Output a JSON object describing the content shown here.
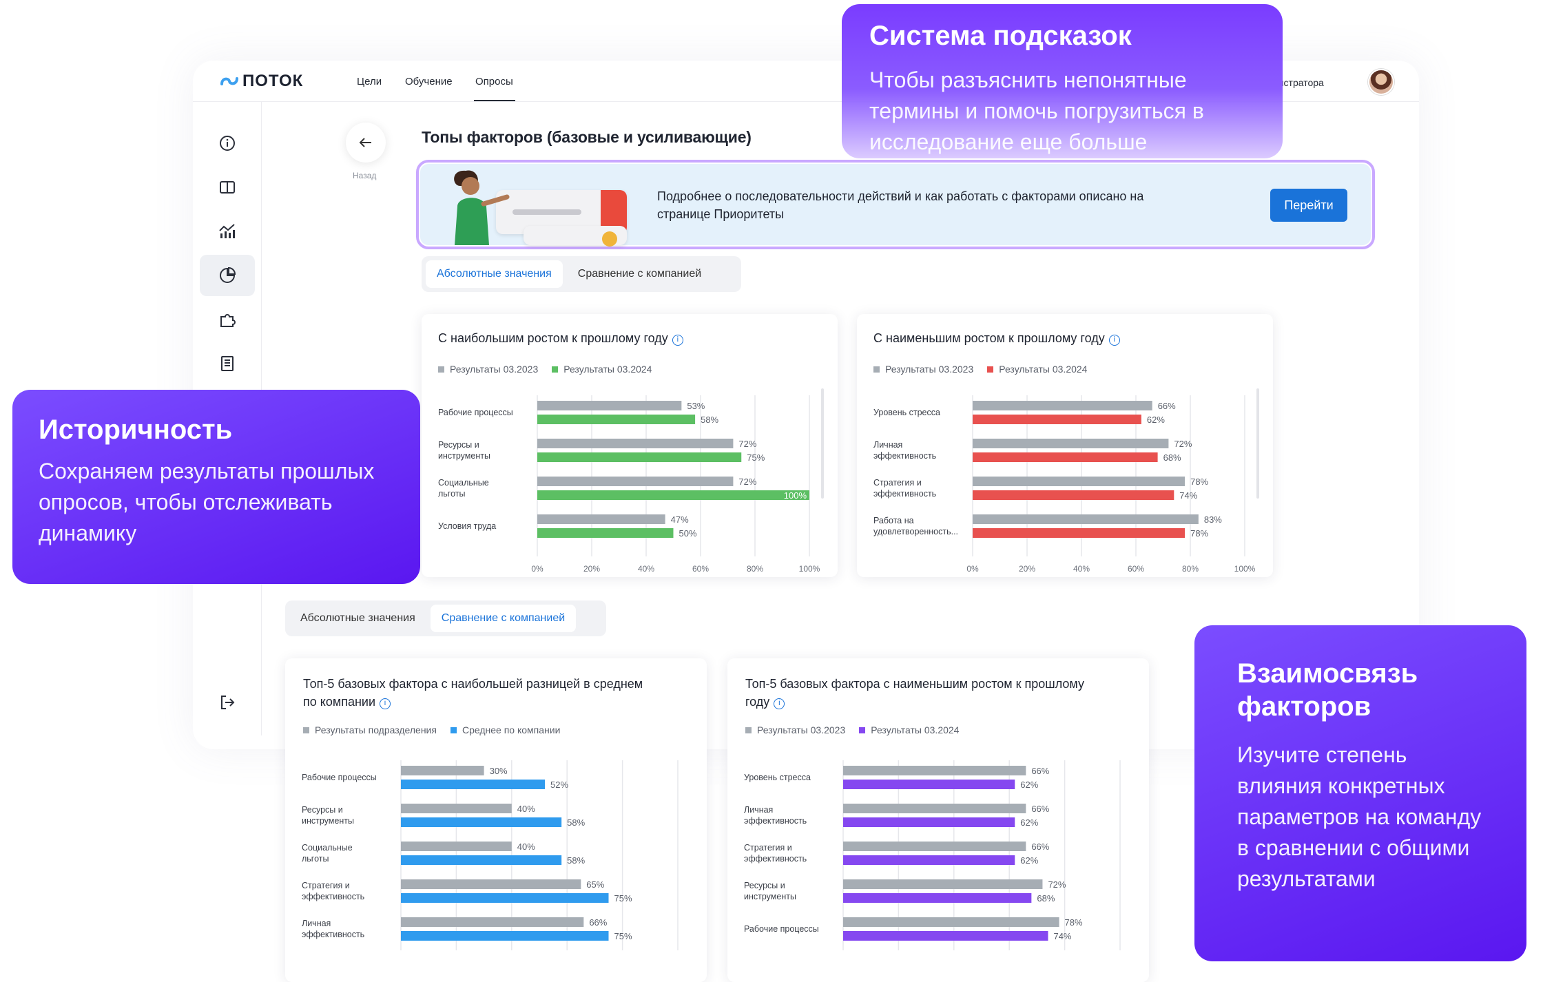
{
  "app": {
    "logo": "ПОТОК",
    "nav": [
      "Цели",
      "Обучение",
      "Опросы"
    ],
    "admin_label": "нистратора"
  },
  "page": {
    "back_label": "Назад",
    "title": "Топы факторов (базовые и усиливающие)"
  },
  "banner": {
    "text": "Подробнее о последовательности действий и как работать с факторами описано на странице Приоритеты",
    "button": "Перейти"
  },
  "tabs_top": [
    "Абсолютные значения",
    "Сравнение с компанией"
  ],
  "tabs_bottom": [
    "Абсолютные значения",
    "Сравнение с компанией"
  ],
  "callouts": {
    "hint": {
      "title": "Система подсказок",
      "text": "Чтобы разъяснить непонятные термины и помочь погрузиться в исследование еще больше"
    },
    "history": {
      "title": "Историчность",
      "text": "Сохраняем результаты прошлых опросов, чтобы отслеживать динамику"
    },
    "link": {
      "title": "Взаимосвязь факторов",
      "text": "Изучите степень влияния конкретных параметров на команду в сравнении с общими результатами"
    }
  },
  "colors": {
    "gray": "#a6adb4",
    "green": "#5cbf63",
    "red": "#e8514f",
    "blue": "#2f9bee",
    "purple": "#8548f0",
    "accent": "#1a73d9"
  },
  "chart_data": [
    {
      "type": "bar",
      "title": "С наибольшим ростом к прошлому году",
      "categories": [
        [
          "Рабочие процессы"
        ],
        [
          "Ресурсы и",
          "инструменты"
        ],
        [
          "Социальные",
          "льготы"
        ],
        [
          "Условия труда"
        ]
      ],
      "series": [
        {
          "name": "Результаты 03.2023",
          "values": [
            53,
            72,
            72,
            47
          ],
          "labels": [
            "53%",
            "72%",
            "72%",
            "47%"
          ],
          "color": "gray"
        },
        {
          "name": "Результаты 03.2024",
          "values": [
            58,
            75,
            100,
            50
          ],
          "labels": [
            "58%",
            "75%",
            "100%",
            "50%"
          ],
          "color": "green"
        }
      ],
      "xticks": [
        "0%",
        "20%",
        "40%",
        "60%",
        "80%",
        "100%"
      ],
      "xlim": [
        0,
        100
      ]
    },
    {
      "type": "bar",
      "title": "С наименьшим ростом к прошлому году",
      "categories": [
        [
          "Уровень стресса"
        ],
        [
          "Личная",
          "эффективность"
        ],
        [
          "Стратегия и",
          "эффективность"
        ],
        [
          "Работа на",
          "удовлетворенность..."
        ]
      ],
      "series": [
        {
          "name": "Результаты 03.2023",
          "values": [
            66,
            72,
            78,
            83
          ],
          "labels": [
            "66%",
            "72%",
            "78%",
            "83%"
          ],
          "color": "gray"
        },
        {
          "name": "Результаты 03.2024",
          "values": [
            62,
            68,
            74,
            78
          ],
          "labels": [
            "62%",
            "68%",
            "74%",
            "78%"
          ],
          "color": "red"
        }
      ],
      "xticks": [
        "0%",
        "20%",
        "40%",
        "60%",
        "80%",
        "100%"
      ],
      "xlim": [
        0,
        100
      ]
    },
    {
      "type": "bar",
      "title": "Топ-5 базовых фактора с наибольшей разницей в среднем по компании",
      "categories": [
        [
          "Рабочие процессы"
        ],
        [
          "Ресурсы и",
          "инструменты"
        ],
        [
          "Социальные",
          "льготы"
        ],
        [
          "Стратегия и",
          "эффективность"
        ],
        [
          "Личная",
          "эффективность"
        ]
      ],
      "series": [
        {
          "name": "Результаты подразделения",
          "values": [
            30,
            40,
            40,
            65,
            66
          ],
          "labels": [
            "30%",
            "40%",
            "40%",
            "65%",
            "66%"
          ],
          "color": "gray"
        },
        {
          "name": "Среднее по компании",
          "values": [
            52,
            58,
            58,
            75,
            75
          ],
          "labels": [
            "52%",
            "58%",
            "58%",
            "75%",
            "75%"
          ],
          "color": "blue"
        }
      ],
      "xticks": [
        "0%",
        "20%",
        "40%",
        "60%",
        "80%",
        "100%"
      ],
      "xlim": [
        0,
        100
      ]
    },
    {
      "type": "bar",
      "title": "Топ-5 базовых фактора с наименьшим ростом к прошлому году",
      "categories": [
        [
          "Уровень стресса"
        ],
        [
          "Личная",
          "эффективность"
        ],
        [
          "Стратегия и",
          "эффективность"
        ],
        [
          "Ресурсы и",
          "инструменты"
        ],
        [
          "Рабочие процессы"
        ]
      ],
      "series": [
        {
          "name": "Результаты 03.2023",
          "values": [
            66,
            66,
            66,
            72,
            78
          ],
          "labels": [
            "66%",
            "66%",
            "66%",
            "72%",
            "78%"
          ],
          "color": "gray"
        },
        {
          "name": "Результаты 03.2024",
          "values": [
            62,
            62,
            62,
            68,
            74
          ],
          "labels": [
            "62%",
            "62%",
            "62%",
            "68%",
            "74%"
          ],
          "color": "purple"
        }
      ],
      "xticks": [
        "0%",
        "20%",
        "40%",
        "60%",
        "80%",
        "100%"
      ],
      "xlim": [
        0,
        100
      ]
    }
  ]
}
